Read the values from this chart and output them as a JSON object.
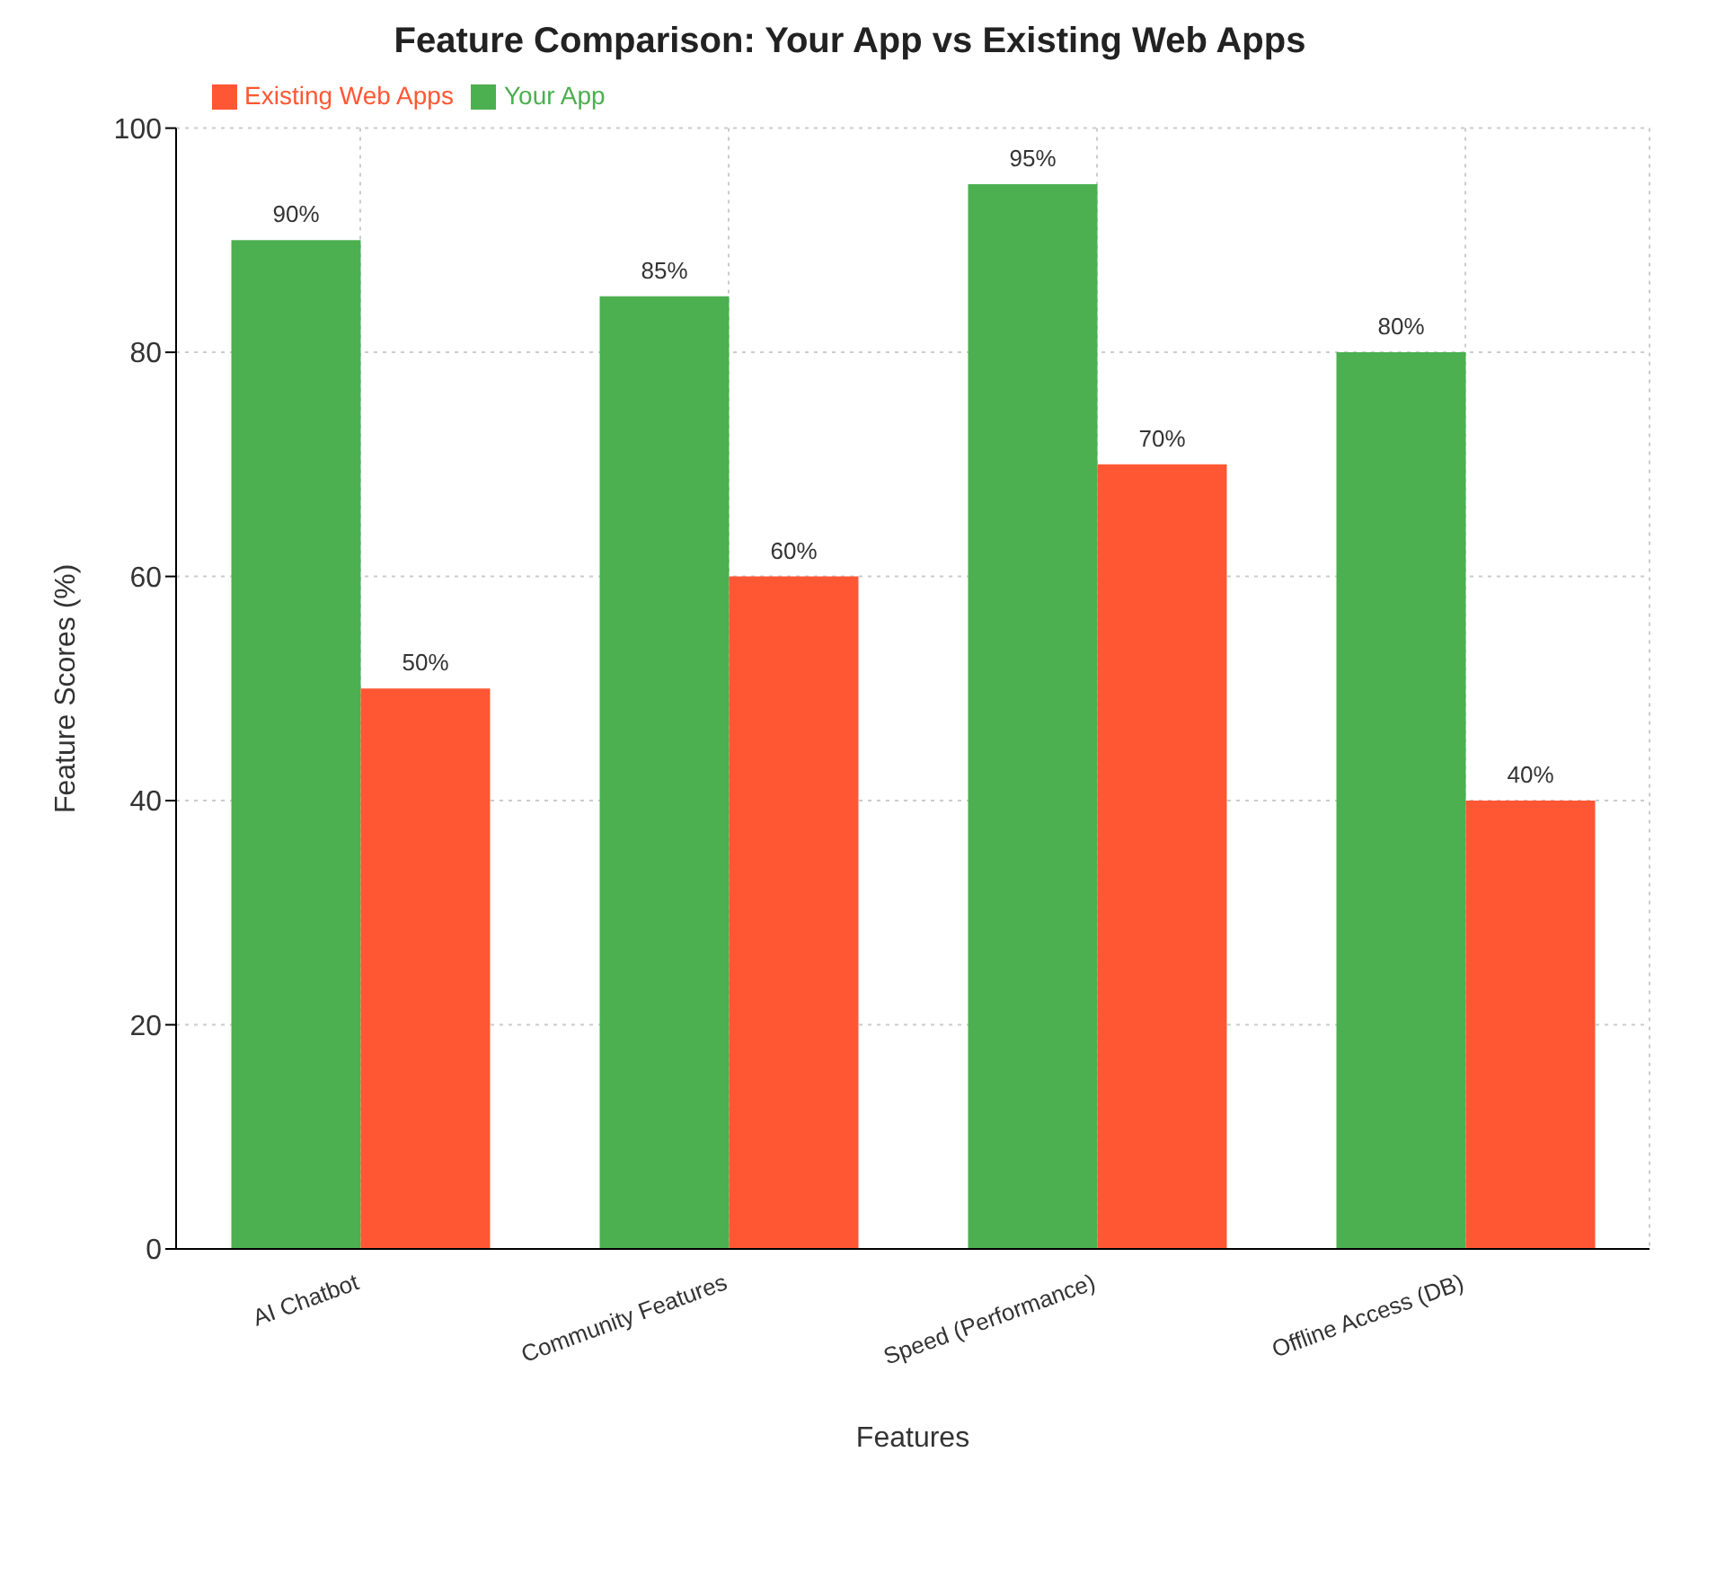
{
  "chart_data": {
    "type": "bar",
    "title": "Feature Comparison: Your App vs Existing Web Apps",
    "xlabel": "Features",
    "ylabel": "Feature Scores (%)",
    "categories": [
      "AI Chatbot",
      "Community Features",
      "Speed (Performance)",
      "Offline Access (DB)"
    ],
    "series": [
      {
        "name": "Your App",
        "color": "#4caf50",
        "values": [
          90,
          85,
          95,
          80
        ],
        "value_labels": [
          "90%",
          "85%",
          "95%",
          "80%"
        ]
      },
      {
        "name": "Existing Web Apps",
        "color": "#ff5733",
        "values": [
          50,
          60,
          70,
          40
        ],
        "value_labels": [
          "50%",
          "60%",
          "70%",
          "40%"
        ]
      }
    ],
    "ylim": [
      0,
      100
    ],
    "yticks": [
      0,
      20,
      40,
      60,
      80,
      100
    ],
    "grid": true,
    "legend": "top left"
  }
}
